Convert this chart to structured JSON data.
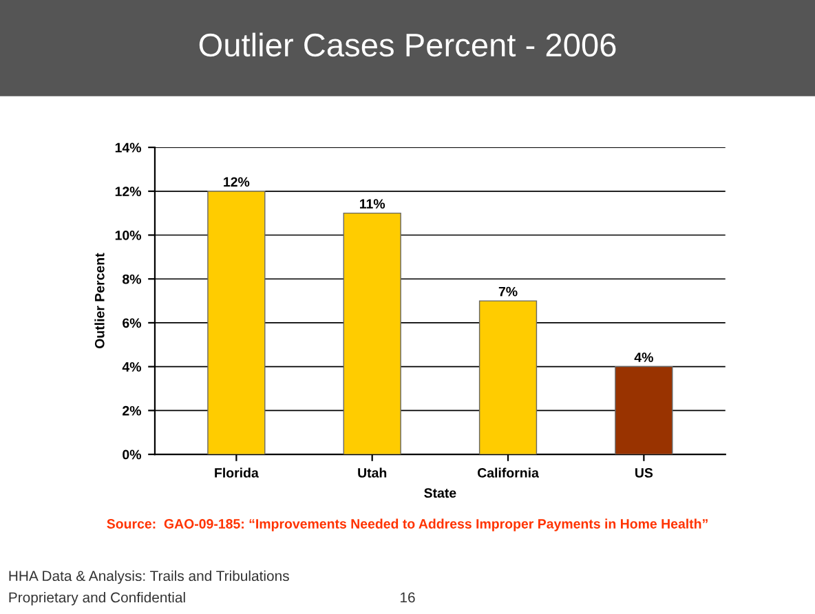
{
  "chart_data": {
    "type": "bar",
    "title": "Outlier Cases Percent - 2006",
    "xlabel": "State",
    "ylabel": "Outlier Percent",
    "categories": [
      "Florida",
      "Utah",
      "California",
      "US"
    ],
    "values": [
      12,
      11,
      7,
      4
    ],
    "colors": [
      "#ffcc00",
      "#ffcc00",
      "#ffcc00",
      "#993300"
    ],
    "value_labels": [
      "12%",
      "11%",
      "7%",
      "4%"
    ],
    "ylim": [
      0,
      14
    ],
    "yticks": [
      {
        "value": 0,
        "label": "0%"
      },
      {
        "value": 2,
        "label": "2%"
      },
      {
        "value": 4,
        "label": "4%"
      },
      {
        "value": 6,
        "label": "6%"
      },
      {
        "value": 8,
        "label": "8%"
      },
      {
        "value": 10,
        "label": "10%"
      },
      {
        "value": 12,
        "label": "12%"
      },
      {
        "value": 14,
        "label": "14%"
      }
    ],
    "grid": "y",
    "legend": false,
    "annotations": [
      "Source:  GAO-09-185: “Improvements Needed to Address Improper Payments in Home Health”",
      "HHA Data & Analysis: Trails and Tribulations",
      "Proprietary and Confidential",
      "16"
    ]
  }
}
